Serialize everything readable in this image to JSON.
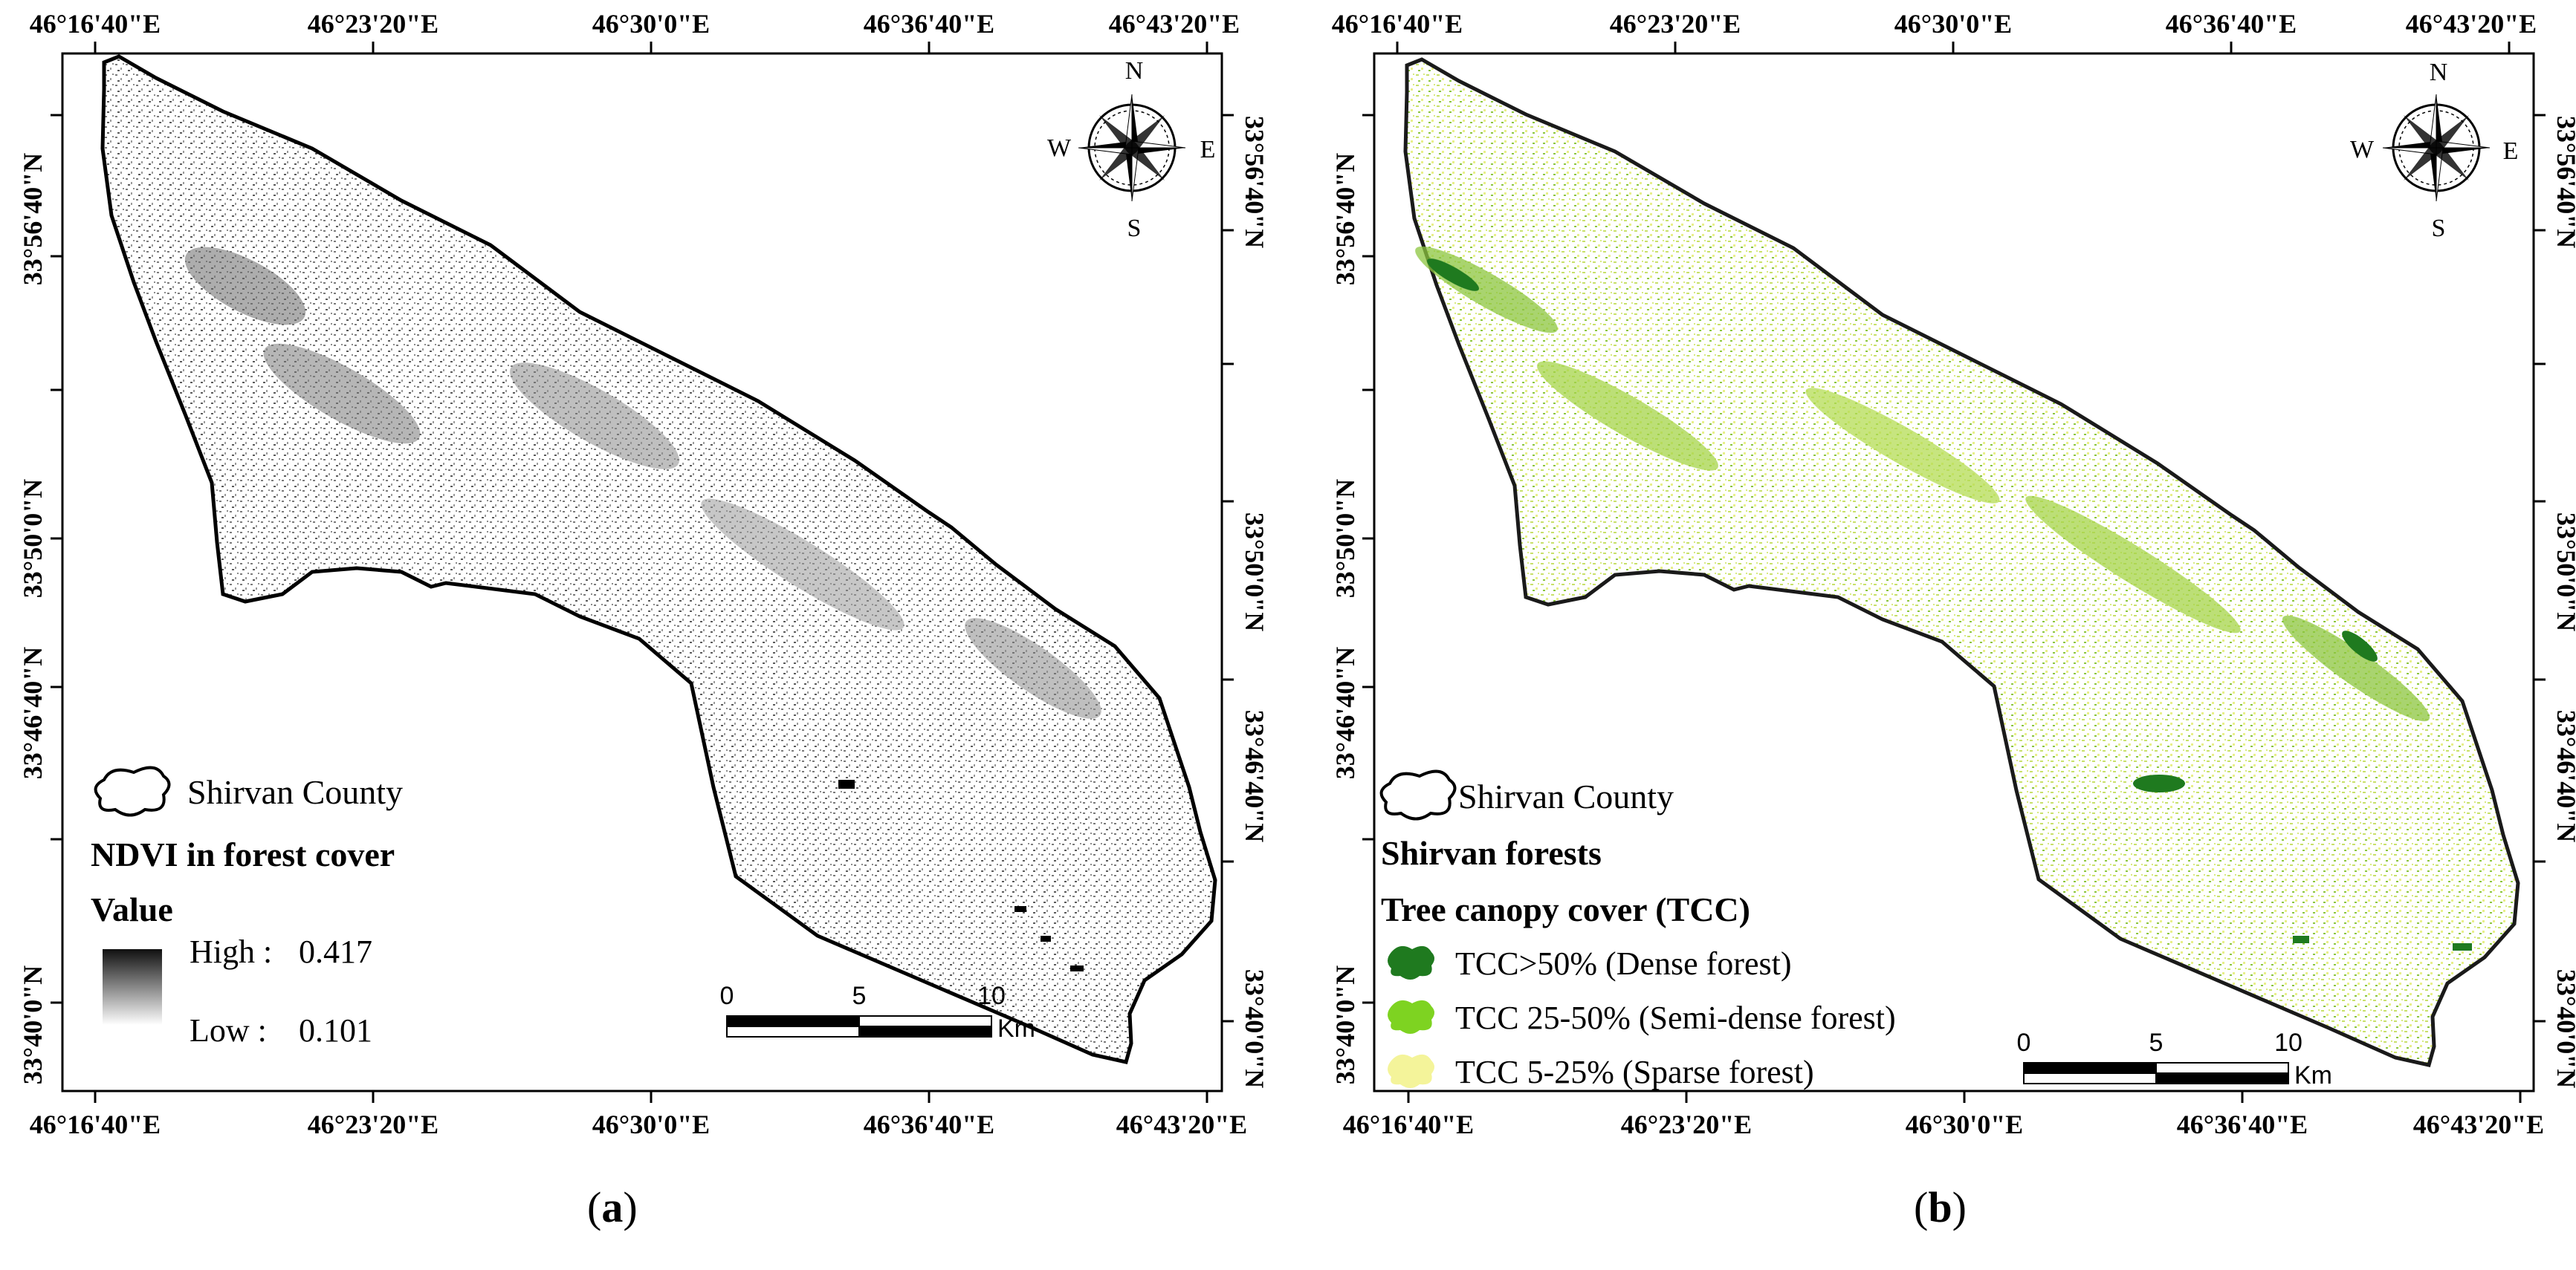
{
  "figure": {
    "panels": [
      {
        "id": "a",
        "caption_letter": "a",
        "longitude_labels": [
          "46°16'40\"E",
          "46°23'20\"E",
          "46°30'0\"E",
          "46°36'40\"E",
          "46°43'20\"E"
        ],
        "latitude_labels": [
          "33°40'0\"N",
          "33°46'40\"N",
          "33°50'0\"N",
          "33°56'40\"N"
        ],
        "north_arrow": {
          "icon": "compass-rose-icon",
          "N": "N",
          "S": "S",
          "E": "E",
          "W": "W"
        },
        "legend": {
          "boundary_label": "Shirvan County",
          "heading": "NDVI in forest cover",
          "value_heading": "Value",
          "high_label": "High :",
          "high_value": "0.417",
          "low_label": "Low :",
          "low_value": "0.101",
          "ramp_colors": [
            "#101010",
            "#ffffff"
          ]
        },
        "scale_bar": {
          "ticks": [
            "0",
            "5",
            "10"
          ],
          "unit": "Km"
        }
      },
      {
        "id": "b",
        "caption_letter": "b",
        "longitude_labels": [
          "46°16'40\"E",
          "46°23'20\"E",
          "46°30'0\"E",
          "46°36'40\"E",
          "46°43'20\"E"
        ],
        "latitude_labels": [
          "33°40'0\"N",
          "33°46'40\"N",
          "33°50'0\"N",
          "33°56'40\"N"
        ],
        "north_arrow": {
          "icon": "compass-rose-icon",
          "N": "N",
          "S": "S",
          "E": "E",
          "W": "W"
        },
        "legend": {
          "boundary_label": "Shirvan County",
          "heading": "Shirvan forests",
          "subheading": "Tree canopy cover (TCC)",
          "classes": [
            {
              "label": "TCC>50% (Dense forest)",
              "color": "#1f7a1f"
            },
            {
              "label": "TCC 25-50% (Semi-dense forest)",
              "color": "#7ed321"
            },
            {
              "label": "TCC 5-25% (Sparse forest)",
              "color": "#f4f49a"
            }
          ]
        },
        "scale_bar": {
          "ticks": [
            "0",
            "5",
            "10"
          ],
          "unit": "Km"
        }
      }
    ]
  }
}
